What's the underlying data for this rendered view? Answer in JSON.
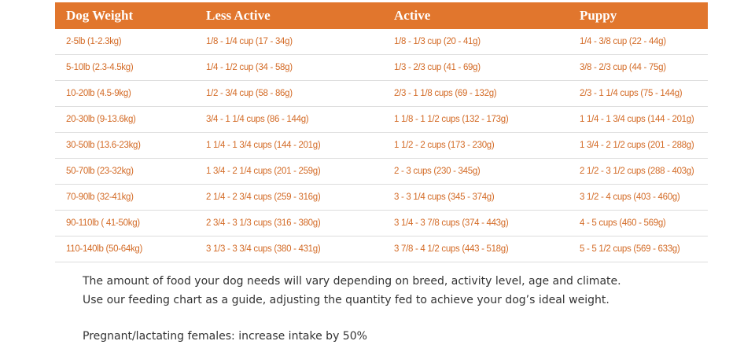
{
  "table": {
    "header": [
      "Dog Weight",
      "Less Active",
      "Active",
      "Puppy"
    ],
    "rows": [
      [
        "2-5lb (1-2.3kg)",
        "1/8 - 1/4 cup (17 - 34g)",
        "1/8 - 1/3 cup (20 - 41g)",
        "1/4 - 3/8 cup (22 - 44g)"
      ],
      [
        "5-10lb (2.3-4.5kg)",
        "1/4 - 1/2 cup (34 - 58g)",
        "1/3 - 2/3 cup (41 - 69g)",
        "3/8 - 2/3 cup (44 - 75g)"
      ],
      [
        "10-20lb (4.5-9kg)",
        "1/2 - 3/4 cup (58 - 86g)",
        "2/3 - 1 1/8 cups (69 - 132g)",
        "2/3 - 1 1/4 cups (75 - 144g)"
      ],
      [
        "20-30lb (9-13.6kg)",
        "3/4 - 1 1/4 cups (86 - 144g)",
        "1 1/8 - 1 1/2 cups (132 - 173g)",
        "1 1/4 - 1 3/4 cups (144 - 201g)"
      ],
      [
        "30-50lb (13.6-23kg)",
        "1 1/4 - 1 3/4 cups (144 - 201g)",
        "1 1/2 - 2 cups (173 - 230g)",
        "1 3/4 - 2 1/2 cups (201 - 288g)"
      ],
      [
        "50-70lb (23-32kg)",
        "1 3/4 - 2 1/4 cups (201 - 259g)",
        "2 - 3 cups (230 - 345g)",
        "2 1/2 - 3 1/2 cups (288 - 403g)"
      ],
      [
        "70-90lb (32-41kg)",
        "2 1/4 - 2 3/4 cups (259 - 316g)",
        "3 - 3 1/4 cups (345 - 374g)",
        "3 1/2 - 4 cups (403 - 460g)"
      ],
      [
        "90-110lb ( 41-50kg)",
        "2 3/4 - 3 1/3 cups (316 - 380g)",
        "3 1/4 - 3 7/8 cups (374 - 443g)",
        "4 - 5 cups (460 - 569g)"
      ],
      [
        "110-140lb (50-64kg)",
        "3 1/3 - 3 3/4 cups (380 - 431g)",
        "3 7/8 - 4 1/2 cups (443 - 518g)",
        "5 - 5 1/2 cups (569 - 633g)"
      ]
    ]
  },
  "notes": [
    "The amount of food your dog needs will vary depending on breed, activity level, age and climate.",
    "Use our feeding chart as a guide, adjusting the quantity fed to achieve your dog’s ideal weight.",
    "Pregnant/lactating females: increase intake by 50%"
  ]
}
